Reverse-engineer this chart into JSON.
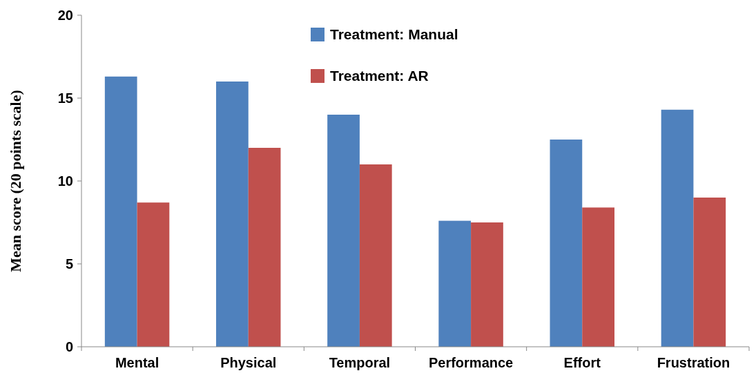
{
  "chart_data": {
    "type": "bar",
    "ylabel": "Mean score (20 points scale)",
    "categories": [
      "Mental",
      "Physical",
      "Temporal",
      "Performance",
      "Effort",
      "Frustration"
    ],
    "series": [
      {
        "name": "Treatment: Manual",
        "color": "#4f81bd",
        "values": [
          16.3,
          16.0,
          14.0,
          7.6,
          12.5,
          14.3
        ]
      },
      {
        "name": "Treatment: AR",
        "color": "#c0504d",
        "values": [
          8.7,
          12.0,
          11.0,
          7.5,
          8.4,
          9.0
        ]
      }
    ],
    "ylim": [
      0,
      20
    ],
    "yticks": [
      0,
      5,
      10,
      15,
      20
    ],
    "grid": false,
    "legend": "top"
  }
}
